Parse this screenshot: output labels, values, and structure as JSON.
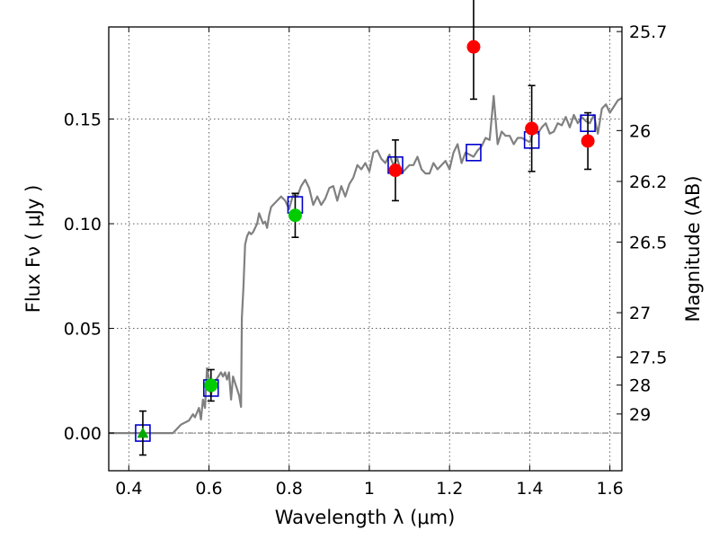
{
  "chart_data": {
    "type": "scatter",
    "xlabel": "Wavelength  λ (μm)",
    "ylabel": "Flux  Fν  ( μJy )",
    "y2label": "Magnitude (AB)",
    "xlim": [
      0.35,
      1.63
    ],
    "ylim": [
      -0.018,
      0.194
    ],
    "grid": true,
    "x_ticks": [
      {
        "value": 0.4,
        "label": "0.4"
      },
      {
        "value": 0.6,
        "label": "0.6"
      },
      {
        "value": 0.8,
        "label": "0.8"
      },
      {
        "value": 1.0,
        "label": "1"
      },
      {
        "value": 1.2,
        "label": "1.2"
      },
      {
        "value": 1.4,
        "label": "1.4"
      },
      {
        "value": 1.6,
        "label": "1.6"
      }
    ],
    "y_ticks": [
      {
        "value": 0.0,
        "label": "0.00"
      },
      {
        "value": 0.05,
        "label": "0.05"
      },
      {
        "value": 0.1,
        "label": "0.10"
      },
      {
        "value": 0.15,
        "label": "0.15"
      }
    ],
    "magnitude_ticks": [
      {
        "mag": 25.7,
        "flux": 0.1918,
        "label": "25.7"
      },
      {
        "mag": 26,
        "flux": 0.1445,
        "label": "26"
      },
      {
        "mag": 26.2,
        "flux": 0.1202,
        "label": "26.2"
      },
      {
        "mag": 26.5,
        "flux": 0.0912,
        "label": "26.5"
      },
      {
        "mag": 27,
        "flux": 0.0575,
        "label": "27"
      },
      {
        "mag": 27.5,
        "flux": 0.0363,
        "label": "27.5"
      },
      {
        "mag": 28,
        "flux": 0.0229,
        "label": "28"
      },
      {
        "mag": 29,
        "flux": 0.0091,
        "label": "29"
      }
    ],
    "reference_line_y": 0.0,
    "series": [
      {
        "kind": "line",
        "color": "#808080",
        "points": [
          [
            0.35,
            0.0
          ],
          [
            0.51,
            0.0
          ],
          [
            0.53,
            0.004
          ],
          [
            0.55,
            0.006
          ],
          [
            0.56,
            0.009
          ],
          [
            0.565,
            0.0075
          ],
          [
            0.575,
            0.012
          ],
          [
            0.58,
            0.0065
          ],
          [
            0.585,
            0.016
          ],
          [
            0.59,
            0.012
          ],
          [
            0.595,
            0.031
          ],
          [
            0.6,
            0.026
          ],
          [
            0.605,
            0.018
          ],
          [
            0.61,
            0.024
          ],
          [
            0.62,
            0.026
          ],
          [
            0.63,
            0.029
          ],
          [
            0.635,
            0.027
          ],
          [
            0.64,
            0.029
          ],
          [
            0.645,
            0.0255
          ],
          [
            0.65,
            0.029
          ],
          [
            0.655,
            0.016
          ],
          [
            0.66,
            0.027
          ],
          [
            0.665,
            0.024
          ],
          [
            0.67,
            0.021
          ],
          [
            0.675,
            0.018
          ],
          [
            0.68,
            0.0125
          ],
          [
            0.682,
            0.055
          ],
          [
            0.686,
            0.07
          ],
          [
            0.69,
            0.09
          ],
          [
            0.695,
            0.094
          ],
          [
            0.7,
            0.096
          ],
          [
            0.705,
            0.095
          ],
          [
            0.71,
            0.096
          ],
          [
            0.72,
            0.1
          ],
          [
            0.725,
            0.105
          ],
          [
            0.735,
            0.1
          ],
          [
            0.74,
            0.101
          ],
          [
            0.745,
            0.098
          ],
          [
            0.75,
            0.104
          ],
          [
            0.755,
            0.108
          ],
          [
            0.765,
            0.11
          ],
          [
            0.78,
            0.113
          ],
          [
            0.79,
            0.111
          ],
          [
            0.8,
            0.107
          ],
          [
            0.81,
            0.114
          ],
          [
            0.82,
            0.113
          ],
          [
            0.83,
            0.118
          ],
          [
            0.84,
            0.121
          ],
          [
            0.85,
            0.117
          ],
          [
            0.86,
            0.109
          ],
          [
            0.87,
            0.113
          ],
          [
            0.88,
            0.109
          ],
          [
            0.89,
            0.112
          ],
          [
            0.9,
            0.117
          ],
          [
            0.91,
            0.118
          ],
          [
            0.92,
            0.111
          ],
          [
            0.93,
            0.118
          ],
          [
            0.94,
            0.113
          ],
          [
            0.95,
            0.119
          ],
          [
            0.96,
            0.122
          ],
          [
            0.97,
            0.128
          ],
          [
            0.98,
            0.126
          ],
          [
            0.99,
            0.129
          ],
          [
            1.0,
            0.125
          ],
          [
            1.01,
            0.134
          ],
          [
            1.02,
            0.135
          ],
          [
            1.03,
            0.131
          ],
          [
            1.04,
            0.129
          ],
          [
            1.05,
            0.133
          ],
          [
            1.06,
            0.128
          ],
          [
            1.07,
            0.131
          ],
          [
            1.08,
            0.124
          ],
          [
            1.09,
            0.126
          ],
          [
            1.1,
            0.128
          ],
          [
            1.11,
            0.128
          ],
          [
            1.12,
            0.132
          ],
          [
            1.13,
            0.126
          ],
          [
            1.14,
            0.124
          ],
          [
            1.15,
            0.124
          ],
          [
            1.16,
            0.129
          ],
          [
            1.17,
            0.126
          ],
          [
            1.18,
            0.128
          ],
          [
            1.19,
            0.13
          ],
          [
            1.2,
            0.126
          ],
          [
            1.21,
            0.134
          ],
          [
            1.22,
            0.138
          ],
          [
            1.23,
            0.129
          ],
          [
            1.24,
            0.134
          ],
          [
            1.25,
            0.133
          ],
          [
            1.26,
            0.132
          ],
          [
            1.27,
            0.135
          ],
          [
            1.28,
            0.137
          ],
          [
            1.29,
            0.141
          ],
          [
            1.3,
            0.14
          ],
          [
            1.31,
            0.161
          ],
          [
            1.32,
            0.138
          ],
          [
            1.33,
            0.144
          ],
          [
            1.34,
            0.142
          ],
          [
            1.35,
            0.142
          ],
          [
            1.36,
            0.138
          ],
          [
            1.37,
            0.141
          ],
          [
            1.38,
            0.141
          ],
          [
            1.39,
            0.14
          ],
          [
            1.4,
            0.139
          ],
          [
            1.41,
            0.144
          ],
          [
            1.42,
            0.143
          ],
          [
            1.43,
            0.146
          ],
          [
            1.44,
            0.148
          ],
          [
            1.45,
            0.143
          ],
          [
            1.46,
            0.144
          ],
          [
            1.47,
            0.148
          ],
          [
            1.48,
            0.147
          ],
          [
            1.49,
            0.151
          ],
          [
            1.5,
            0.146
          ],
          [
            1.51,
            0.152
          ],
          [
            1.52,
            0.148
          ],
          [
            1.53,
            0.151
          ],
          [
            1.54,
            0.149
          ],
          [
            1.55,
            0.148
          ],
          [
            1.56,
            0.152
          ],
          [
            1.57,
            0.143
          ],
          [
            1.58,
            0.155
          ],
          [
            1.59,
            0.157
          ],
          [
            1.6,
            0.153
          ],
          [
            1.61,
            0.156
          ],
          [
            1.62,
            0.159
          ],
          [
            1.63,
            0.16
          ]
        ]
      },
      {
        "kind": "open-square",
        "color": "#0000cc",
        "points": [
          [
            0.435,
            0.0
          ],
          [
            0.605,
            0.0215
          ],
          [
            0.815,
            0.109
          ],
          [
            1.065,
            0.128
          ],
          [
            1.26,
            0.134
          ],
          [
            1.405,
            0.14
          ],
          [
            1.545,
            0.148
          ]
        ]
      },
      {
        "kind": "filled-circle",
        "color": "#ff0000",
        "points": [
          {
            "x": 1.065,
            "y": 0.1255,
            "err": 0.0145
          },
          {
            "x": 1.26,
            "y": 0.1845,
            "err": 0.025
          },
          {
            "x": 1.405,
            "y": 0.1455,
            "err": 0.0205
          },
          {
            "x": 1.545,
            "y": 0.1395,
            "err": 0.0135
          }
        ]
      },
      {
        "kind": "filled-circle",
        "color": "#00cc00",
        "points": [
          {
            "x": 0.605,
            "y": 0.0228,
            "err": 0.0075
          },
          {
            "x": 0.815,
            "y": 0.104,
            "err": 0.0105
          }
        ]
      },
      {
        "kind": "filled-triangle",
        "color": "#00aa00",
        "points": [
          {
            "x": 0.435,
            "y": 0.0,
            "err": 0.0105
          }
        ]
      }
    ]
  }
}
